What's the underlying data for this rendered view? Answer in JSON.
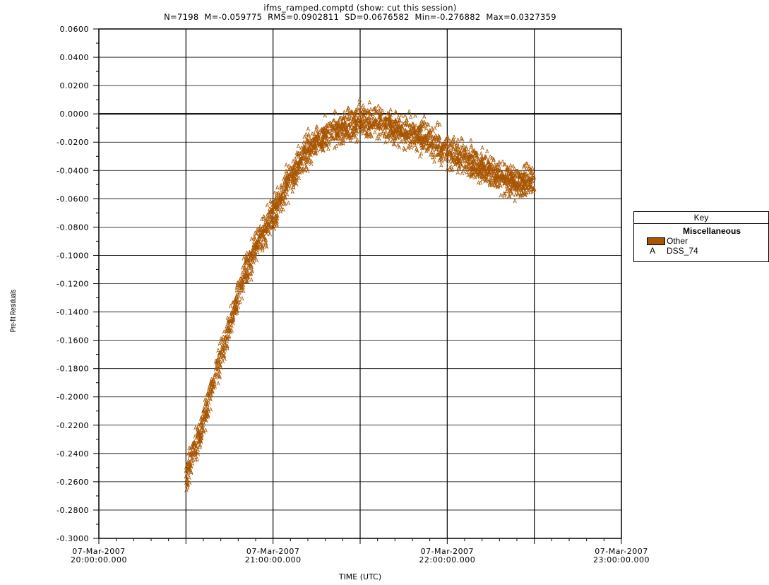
{
  "header": {
    "title": "ifms_ramped.comptd (show: cut this session)",
    "stats": "N=7198  M=-0.059775  RMS=0.0902811  SD=0.0676582  Min=-0.276882  Max=0.0327359"
  },
  "legend": {
    "title": "Key",
    "group": "Miscellaneous",
    "items": [
      {
        "label": "Other",
        "swatch": "filled-box"
      },
      {
        "label": "DSS_74",
        "marker": "A"
      }
    ]
  },
  "colors": {
    "series": "#a85500",
    "grid": "#000000",
    "background": "#ffffff"
  },
  "chart_data": {
    "type": "scatter",
    "title": "ifms_ramped.comptd (show: cut this session)",
    "subtitle": "N=7198  M=-0.059775  RMS=0.0902811  SD=0.0676582  Min=-0.276882  Max=0.0327359",
    "xlabel": "TIME (UTC)",
    "ylabel": "Pre-fit Residuals",
    "xlim": [
      "2007-03-07T20:00:00",
      "2007-03-07T23:00:00"
    ],
    "ylim": [
      -0.3,
      0.06
    ],
    "yticks": [
      "0.0600",
      "0.0400",
      "0.0200",
      "0.0000",
      "-0.0200",
      "-0.0400",
      "-0.0600",
      "-0.0800",
      "-0.1000",
      "-0.1200",
      "-0.1400",
      "-0.1600",
      "-0.1800",
      "-0.2000",
      "-0.2200",
      "-0.2400",
      "-0.2600",
      "-0.2800",
      "-0.3000"
    ],
    "xticks": [
      {
        "date": "07-Mar-2007",
        "time": "20:00:00.000"
      },
      {
        "date": "07-Mar-2007",
        "time": "21:00:00.000"
      },
      {
        "date": "07-Mar-2007",
        "time": "22:00:00.000"
      },
      {
        "date": "07-Mar-2007",
        "time": "23:00:00.000"
      }
    ],
    "grid": true,
    "legend_position": "right",
    "series": [
      {
        "name": "DSS_74",
        "marker": "A",
        "color": "#a85500",
        "n": 7198,
        "trend": [
          {
            "x": "2007-03-07T20:30:00",
            "y": -0.255
          },
          {
            "x": "2007-03-07T20:35:00",
            "y": -0.225
          },
          {
            "x": "2007-03-07T20:40:00",
            "y": -0.185
          },
          {
            "x": "2007-03-07T20:45:00",
            "y": -0.15
          },
          {
            "x": "2007-03-07T20:50:00",
            "y": -0.115
          },
          {
            "x": "2007-03-07T20:55:00",
            "y": -0.09
          },
          {
            "x": "2007-03-07T21:00:00",
            "y": -0.07
          },
          {
            "x": "2007-03-07T21:05:00",
            "y": -0.05
          },
          {
            "x": "2007-03-07T21:10:00",
            "y": -0.03
          },
          {
            "x": "2007-03-07T21:15:00",
            "y": -0.018
          },
          {
            "x": "2007-03-07T21:20:00",
            "y": -0.012
          },
          {
            "x": "2007-03-07T21:25:00",
            "y": -0.01
          },
          {
            "x": "2007-03-07T21:30:00",
            "y": -0.005
          },
          {
            "x": "2007-03-07T21:35:00",
            "y": -0.005
          },
          {
            "x": "2007-03-07T21:40:00",
            "y": -0.008
          },
          {
            "x": "2007-03-07T21:45:00",
            "y": -0.012
          },
          {
            "x": "2007-03-07T21:50:00",
            "y": -0.015
          },
          {
            "x": "2007-03-07T21:55:00",
            "y": -0.02
          },
          {
            "x": "2007-03-07T22:00:00",
            "y": -0.025
          },
          {
            "x": "2007-03-07T22:05:00",
            "y": -0.03
          },
          {
            "x": "2007-03-07T22:10:00",
            "y": -0.035
          },
          {
            "x": "2007-03-07T22:15:00",
            "y": -0.04
          },
          {
            "x": "2007-03-07T22:20:00",
            "y": -0.045
          },
          {
            "x": "2007-03-07T22:25:00",
            "y": -0.048
          },
          {
            "x": "2007-03-07T22:30:00",
            "y": -0.047
          }
        ],
        "spread": 0.012,
        "min": -0.276882,
        "max": 0.0327359
      }
    ]
  }
}
